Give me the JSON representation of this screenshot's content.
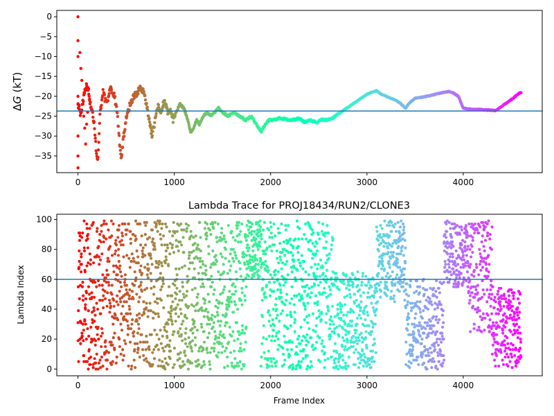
{
  "colors": {
    "axis": "#000000",
    "hline": "#1f77b4",
    "background": "#ffffff",
    "colormap": "rainbow (reversed: red at frame 0, violet at final frame)"
  },
  "chart_data": [
    {
      "type": "scatter",
      "title": "",
      "xlabel": "",
      "ylabel": "ΔG (kT)",
      "ylabel_parts": {
        "delta": "Δ",
        "var": "G",
        "unit": " (kT)"
      },
      "xlim": [
        -220,
        4820
      ],
      "ylim": [
        -39.2,
        1.6
      ],
      "xticks": [
        0,
        1000,
        2000,
        3000,
        4000
      ],
      "yticks": [
        0,
        -5,
        -10,
        -15,
        -20,
        -25,
        -30,
        -35
      ],
      "hline": -23.7,
      "grid": false,
      "legend": "none",
      "n_frames": 4600,
      "series": [
        {
          "x": [
            0,
            30,
            60,
            90,
            110,
            130,
            150,
            170,
            190,
            205,
            215,
            230,
            260,
            300,
            340,
            380,
            410,
            430,
            450,
            470,
            500,
            540,
            580,
            620,
            650,
            680,
            700,
            720,
            740,
            770,
            800,
            830,
            860,
            900,
            930,
            960,
            990,
            1020,
            1060,
            1100,
            1140,
            1170,
            1200,
            1230,
            1260,
            1300,
            1340,
            1380,
            1420,
            1460,
            1500,
            1560,
            1620,
            1680,
            1740,
            1800,
            1850,
            1880,
            1900,
            1920,
            1950,
            1980,
            2020,
            2100,
            2200,
            2300,
            2350,
            2400,
            2480,
            2540,
            2580,
            2640,
            2700,
            2760,
            2820,
            2880,
            2940,
            3000,
            3050,
            3100,
            3150,
            3200,
            3250,
            3300,
            3350,
            3400,
            3450,
            3500,
            3560,
            3620,
            3680,
            3740,
            3800,
            3850,
            3900,
            3950,
            4000,
            4050,
            4100,
            4160,
            4220,
            4280,
            4340,
            4400,
            4460,
            4520,
            4560,
            4600
          ],
          "y": [
            -22,
            -25,
            -20,
            -17,
            -19,
            -22,
            -24,
            -27,
            -34,
            -36,
            -32,
            -24,
            -19,
            -22,
            -18,
            -20,
            -25,
            -31,
            -36,
            -31,
            -26,
            -22,
            -20,
            -19,
            -18,
            -19,
            -21,
            -23,
            -26,
            -30,
            -26,
            -22,
            -24,
            -21,
            -24,
            -23,
            -26,
            -24,
            -22,
            -23,
            -26,
            -29,
            -28,
            -26,
            -27,
            -25,
            -24,
            -25,
            -24,
            -23,
            -24,
            -25,
            -24,
            -25,
            -26,
            -25,
            -27,
            -28,
            -29,
            -28,
            -27,
            -26,
            -26,
            -25.5,
            -26,
            -25.6,
            -26.5,
            -26,
            -26.5,
            -25.8,
            -26,
            -25.5,
            -24.5,
            -23.5,
            -22.5,
            -21.5,
            -20.5,
            -19.5,
            -19,
            -18.6,
            -19.5,
            -20,
            -20.5,
            -21,
            -21.8,
            -23,
            -21.5,
            -20.5,
            -20.3,
            -20,
            -19.7,
            -19.3,
            -19,
            -18.8,
            -19.2,
            -20,
            -23,
            -23.2,
            -23.3,
            -23.3,
            -23.4,
            -23.5,
            -23.6,
            -22.5,
            -21.5,
            -20.5,
            -19.6,
            -19
          ]
        }
      ]
    },
    {
      "type": "scatter",
      "title": "Lambda Trace for PROJ18434/RUN2/CLONE3",
      "xlabel": "Frame Index",
      "ylabel": "Lambda Index",
      "xlim": [
        -220,
        4820
      ],
      "ylim": [
        -4.5,
        103.5
      ],
      "xticks": [
        0,
        1000,
        2000,
        3000,
        4000
      ],
      "yticks": [
        0,
        20,
        40,
        60,
        80,
        100
      ],
      "hline": 60,
      "grid": false,
      "legend": "none",
      "n_frames": 4600,
      "regimes": [
        {
          "start": 0,
          "end": 1750,
          "low": 0,
          "high": 99
        },
        {
          "start": 1750,
          "end": 1900,
          "low": 60,
          "high": 99
        },
        {
          "start": 1900,
          "end": 2650,
          "low": 0,
          "high": 99
        },
        {
          "start": 2650,
          "end": 3100,
          "low": 0,
          "high": 65
        },
        {
          "start": 3100,
          "end": 3400,
          "low": 45,
          "high": 99
        },
        {
          "start": 3400,
          "end": 3800,
          "low": 0,
          "high": 60
        },
        {
          "start": 3800,
          "end": 4050,
          "low": 55,
          "high": 99
        },
        {
          "start": 4050,
          "end": 4300,
          "low": 25,
          "high": 99
        },
        {
          "start": 4300,
          "end": 4600,
          "low": 0,
          "high": 55
        }
      ]
    }
  ]
}
